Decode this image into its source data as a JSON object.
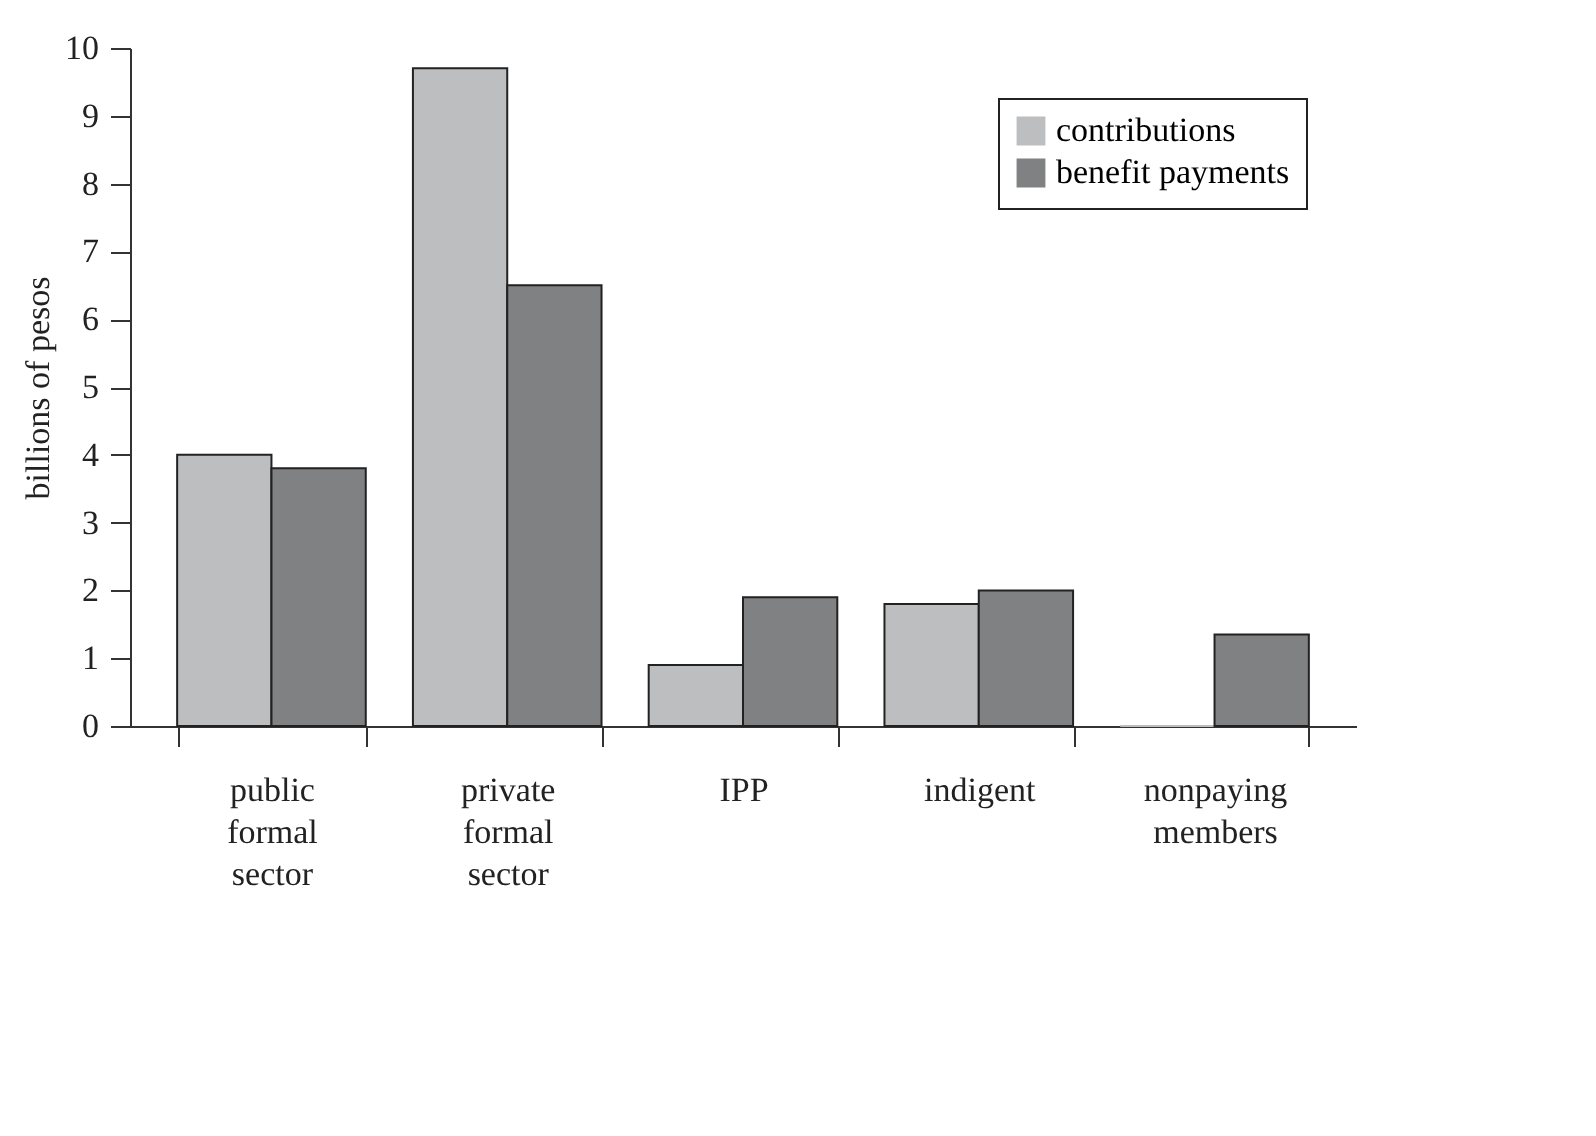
{
  "chart_data": {
    "type": "bar",
    "ylabel": "billions of pesos",
    "categories": [
      "public formal sector",
      "private formal sector",
      "IPP",
      "indigent",
      "nonpaying members"
    ],
    "series": [
      {
        "name": "contributions",
        "color": "#bdbec0",
        "values": [
          4.0,
          9.7,
          0.9,
          1.8,
          0
        ]
      },
      {
        "name": "benefit payments",
        "color": "#808183",
        "values": [
          3.8,
          6.5,
          1.9,
          2.0,
          1.35
        ]
      }
    ],
    "ylim": [
      0,
      10
    ],
    "yticks": [
      0,
      1,
      2,
      3,
      4,
      5,
      6,
      7,
      8,
      9,
      10
    ],
    "grid": false,
    "legend": "top right"
  }
}
